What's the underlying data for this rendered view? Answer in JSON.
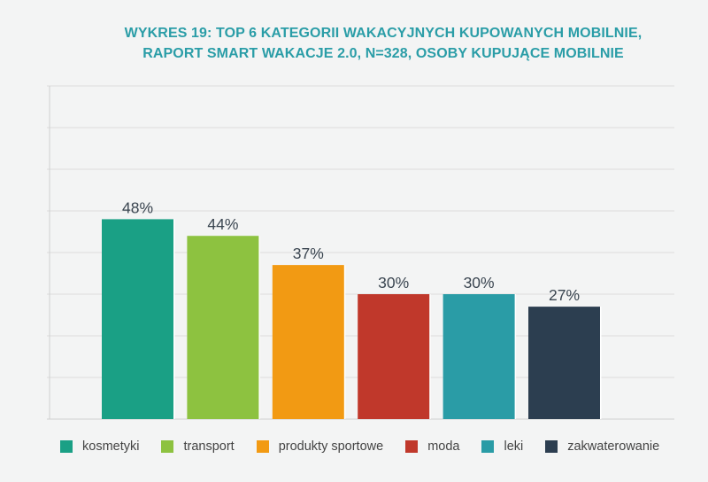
{
  "chart_data": {
    "type": "bar",
    "title_line1": "WYKRES 19: TOP 6 KATEGORII WAKACYJNYCH KUPOWANYCH MOBILNIE,",
    "title_line2": "RAPORT SMART WAKACJE 2.0, N=328, OSOBY KUPUJĄCE MOBILNIE",
    "categories": [
      "kosmetyki",
      "transport",
      "produkty sportowe",
      "moda",
      "leki",
      "zakwaterowanie"
    ],
    "values": [
      48,
      44,
      37,
      30,
      30,
      27
    ],
    "labels": [
      "48%",
      "44%",
      "37%",
      "30%",
      "30%",
      "27%"
    ],
    "colors": [
      "#1aa085",
      "#8dc240",
      "#f29a13",
      "#c0382b",
      "#2a9ca6",
      "#2c3e50"
    ],
    "ylim": [
      0,
      80
    ],
    "grid": true,
    "legend_position": "bottom",
    "xlabel": "",
    "ylabel": ""
  }
}
